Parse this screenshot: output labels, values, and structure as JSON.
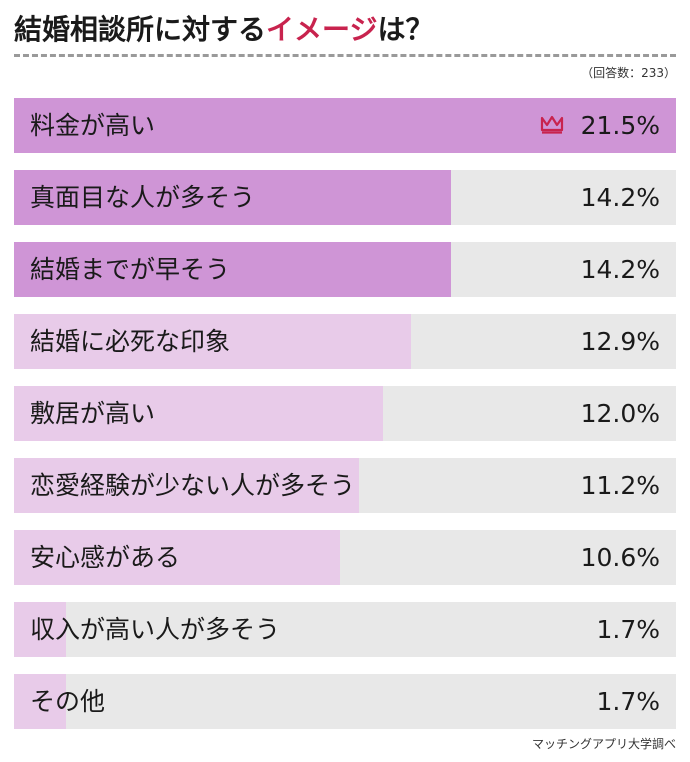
{
  "title": {
    "prefix": "結婚相談所に対する",
    "highlight": "イメージ",
    "suffix": "は？"
  },
  "sample_note": "（回答数：233）",
  "source": "マッチングアプリ大学調べ",
  "colors": {
    "top": "#cf95d6",
    "other": "#e8cbe9",
    "track": "#e8e8e8",
    "accent": "#c8234e"
  },
  "chart_data": {
    "type": "bar",
    "orientation": "horizontal",
    "categories": [
      "料金が高い",
      "真面目な人が多そう",
      "結婚までが早そう",
      "結婚に必死な印象",
      "敷居が高い",
      "恋愛経験が少ない人が多そう",
      "安心感がある",
      "収入が高い人が多そう",
      "その他"
    ],
    "values": [
      21.5,
      14.2,
      14.2,
      12.9,
      12.0,
      11.2,
      10.6,
      1.7,
      1.7
    ],
    "value_labels": [
      "21.5%",
      "14.2%",
      "14.2%",
      "12.9%",
      "12.0%",
      "11.2%",
      "10.6%",
      "1.7%",
      "1.7%"
    ],
    "xlim": [
      0,
      21.5
    ],
    "top_marker": "crown-icon"
  }
}
